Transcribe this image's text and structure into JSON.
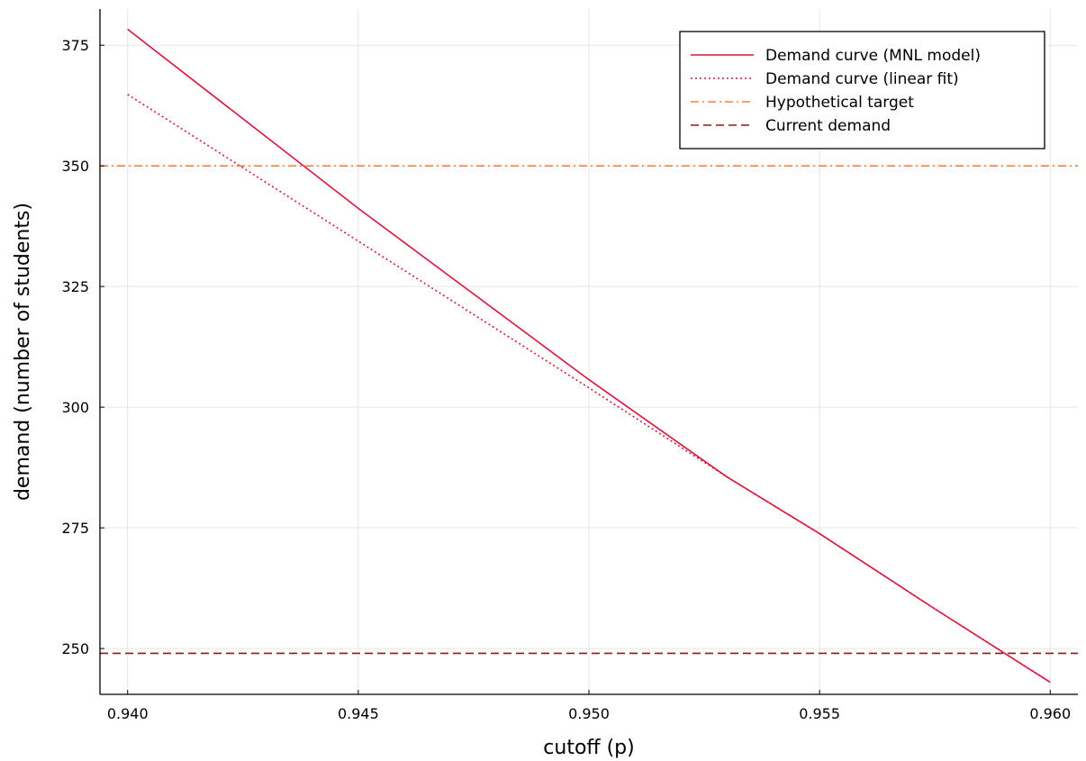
{
  "chart_data": {
    "type": "line",
    "xlabel": "cutoff (p)",
    "ylabel": "demand (number of students)",
    "xlim": [
      0.9394,
      0.9606
    ],
    "ylim": [
      240.5,
      382.5
    ],
    "x_ticks": [
      "0.940",
      "0.945",
      "0.950",
      "0.955",
      "0.960"
    ],
    "x_tick_values": [
      0.94,
      0.945,
      0.95,
      0.955,
      0.96
    ],
    "y_ticks": [
      "250",
      "275",
      "300",
      "325",
      "350",
      "375"
    ],
    "y_tick_values": [
      250,
      275,
      300,
      325,
      350,
      375
    ],
    "grid": true,
    "legend_position": "top-right",
    "series": [
      {
        "name": "Demand curve (MNL model)",
        "style": "solid",
        "color": "#dc143c",
        "x": [
          0.94,
          0.945,
          0.95,
          0.953,
          0.955,
          0.9575,
          0.96
        ],
        "y": [
          378.3,
          341.2,
          305.7,
          285.5,
          273.8,
          258.2,
          243.0
        ]
      },
      {
        "name": "Demand curve (linear fit)",
        "style": "dotted",
        "color": "#dc143c",
        "x": [
          0.94,
          0.945,
          0.95,
          0.953,
          0.955,
          0.9575,
          0.96
        ],
        "y": [
          364.8,
          334.4,
          304.0,
          285.5,
          273.8,
          258.2,
          243.0
        ]
      },
      {
        "name": "Hypothetical target",
        "style": "dashdot",
        "color": "#f0804d",
        "hline": 350
      },
      {
        "name": "Current demand",
        "style": "dashed",
        "color": "#8b1a1a",
        "hline": 249
      }
    ]
  }
}
